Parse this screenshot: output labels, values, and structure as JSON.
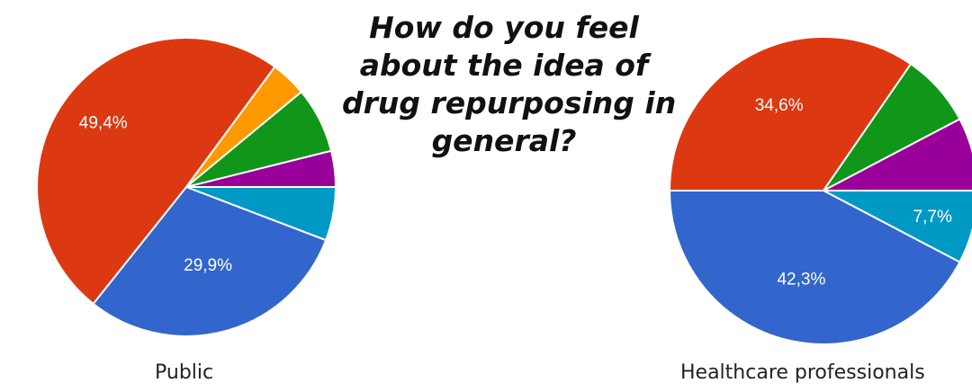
{
  "title_lines": [
    "How do you feel",
    "about the idea of",
    "drug repurposing in",
    "general?"
  ],
  "chart_data": [
    {
      "type": "pie",
      "caption": "Public",
      "slices": [
        {
          "value": 5.8,
          "color": "#0099c6",
          "label": ""
        },
        {
          "value": 29.9,
          "color": "#3366cc",
          "label": "29,9%"
        },
        {
          "value": 49.4,
          "color": "#dc3912",
          "label": "49,4%"
        },
        {
          "value": 3.9,
          "color": "#ff9900",
          "label": ""
        },
        {
          "value": 7.1,
          "color": "#109618",
          "label": ""
        },
        {
          "value": 3.9,
          "color": "#990099",
          "label": ""
        }
      ]
    },
    {
      "type": "pie",
      "caption": "Healthcare professionals",
      "slices": [
        {
          "value": 7.7,
          "color": "#0099c6",
          "label": "7,7%"
        },
        {
          "value": 42.3,
          "color": "#3366cc",
          "label": "42,3%"
        },
        {
          "value": 34.6,
          "color": "#dc3912",
          "label": "34,6%"
        },
        {
          "value": 7.7,
          "color": "#109618",
          "label": ""
        },
        {
          "value": 7.7,
          "color": "#990099",
          "label": ""
        }
      ]
    }
  ]
}
